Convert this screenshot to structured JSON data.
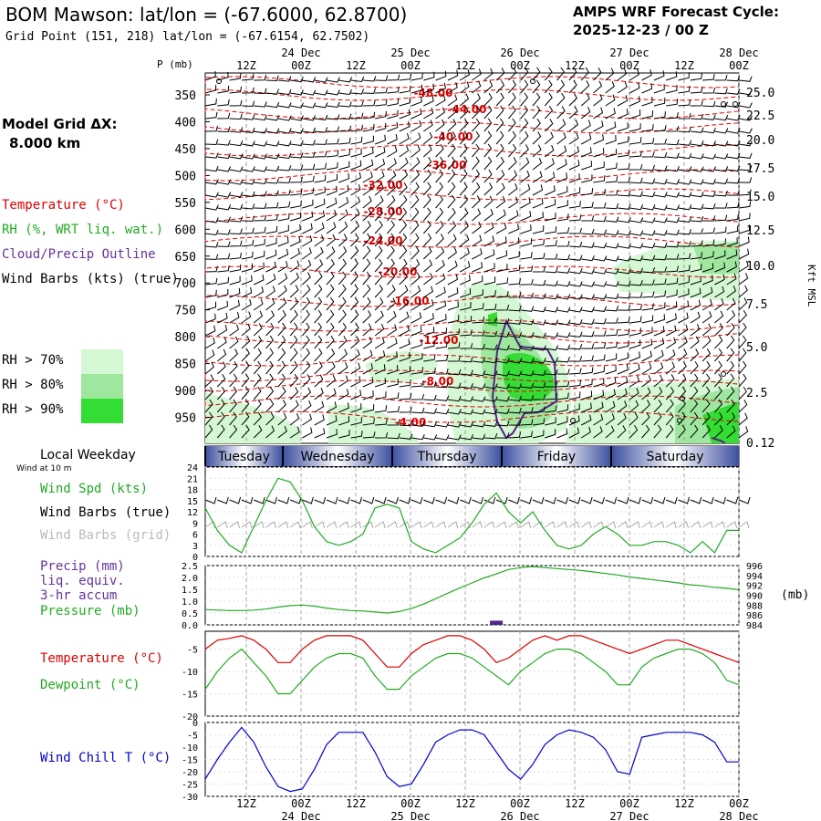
{
  "header": {
    "title": "BOM Mawson:  lat/lon = (-67.6000, 62.8700)",
    "grid_point": "Grid Point (151, 218) lat/lon = (-67.6154, 62.7502)",
    "cycle_line1": "AMPS WRF Forecast Cycle:",
    "cycle_line2": "2025-12-23 / 00  Z"
  },
  "left_legend": {
    "model_grid_line1": "Model Grid ΔX:",
    "model_grid_line2": "8.000 km",
    "temperature": "Temperature (°C)",
    "rh": "RH (%, WRT liq. wat.)",
    "cloud": "Cloud/Precip Outline",
    "wind_barbs": "Wind Barbs (kts) (true)",
    "rh70": "RH > 70%",
    "rh80": "RH > 80%",
    "rh90": "RH > 90%",
    "local_weekday": "Local Weekday",
    "wind_at": "Wind at 10 m",
    "wind_spd": "Wind Spd (kts)",
    "barbs_true": "Wind Barbs (true)",
    "barbs_grid": "Wind Barbs (grid)",
    "precip1": "Precip (mm)",
    "precip2": "liq. equiv.",
    "precip3": "3-hr accum",
    "pressure": "Pressure (mb)",
    "temperature2": "Temperature (°C)",
    "dewpoint": "Dewpoint (°C)",
    "windchill": "Wind Chill T (°C)"
  },
  "colors": {
    "temp": "#dd0000",
    "rh": "#22aa22",
    "cloud": "#552288",
    "wind": "#000000",
    "grid_barbs": "#aaaaaa",
    "rh70": "#d4f7d4",
    "rh80": "#9fe69f",
    "rh90": "#33dd33",
    "windchill": "#0000cc",
    "weekday_band": "#3d4fa0"
  },
  "chart_data": [
    {
      "type": "line",
      "panel": "time-height cross section",
      "x_tick_top": [
        "12Z",
        "00Z",
        "12Z",
        "00Z",
        "12Z",
        "00Z",
        "12Z",
        "00Z",
        "12Z",
        "00Z"
      ],
      "x_dates_top": [
        "24 Dec",
        "25 Dec",
        "26 Dec",
        "27 Dec",
        "28 Dec"
      ],
      "yaxis_left_title": "P (mb)",
      "yaxis_left": [
        350,
        400,
        450,
        500,
        550,
        600,
        650,
        700,
        750,
        800,
        850,
        900,
        950
      ],
      "yaxis_right_title": "Kft MSL",
      "yaxis_right": [
        "25.0",
        "22.5",
        "20.0",
        "17.5",
        "15.0",
        "12.5",
        "10.0",
        "7.5",
        "5.0",
        "2.5",
        "0.12"
      ],
      "temperature_contour_labels": [
        "-48.00",
        "-44.00",
        "-40.00",
        "-36.00",
        "-32.00",
        "-28.00",
        "-24.00",
        "-20.00",
        "-16.00",
        "-12.00",
        "-8.00",
        "-4.00"
      ]
    },
    {
      "type": "line",
      "panel": "weekday band",
      "days": [
        "Tuesday",
        "Wednesday",
        "Thursday",
        "Friday",
        "Saturday"
      ]
    },
    {
      "type": "line",
      "panel": "wind speed",
      "ylabel": "Wind Spd (kts)",
      "yticks": [
        0,
        3,
        6,
        9,
        12,
        15,
        18,
        21,
        24
      ],
      "ylim": [
        0,
        24
      ],
      "values": [
        13,
        7,
        3,
        1,
        8,
        15,
        21,
        20,
        15,
        8,
        4,
        3,
        4,
        6,
        13,
        14,
        13,
        4,
        2,
        1,
        3,
        5,
        9,
        14,
        17,
        12,
        9,
        12,
        7,
        3,
        2,
        3,
        6,
        8,
        6,
        3,
        3,
        4,
        4,
        3,
        1,
        4,
        1,
        7,
        7
      ]
    },
    {
      "type": "line",
      "panel": "precip and pressure",
      "ylabel_right": "(mb)",
      "yticks_left": [
        "0.0",
        "0.5",
        "1.0",
        "1.5",
        "2.0",
        "2.5"
      ],
      "yticks_right": [
        "984",
        "986",
        "988",
        "990",
        "992",
        "994",
        "996"
      ],
      "ylim_left": [
        0,
        2.5
      ],
      "ylim_right": [
        984,
        996
      ],
      "pressure": [
        987.1,
        987.0,
        986.9,
        986.9,
        987.0,
        987.2,
        987.6,
        987.9,
        988.0,
        987.8,
        987.4,
        987.1,
        986.9,
        986.8,
        986.6,
        986.4,
        986.7,
        987.3,
        988.2,
        989.3,
        990.4,
        991.5,
        992.5,
        993.5,
        994.3,
        995.2,
        995.6,
        995.8,
        995.6,
        995.4,
        995.2,
        995.0,
        994.7,
        994.4,
        994.1,
        993.7,
        993.4,
        993.1,
        992.8,
        992.5,
        992.1,
        991.9,
        991.6,
        991.4,
        991.1
      ],
      "precip": [
        0,
        0,
        0,
        0,
        0,
        0,
        0,
        0,
        0,
        0,
        0,
        0,
        0,
        0,
        0,
        0,
        0,
        0,
        0,
        0,
        0,
        0,
        0,
        0,
        0.1,
        0,
        0,
        0,
        0,
        0,
        0,
        0,
        0,
        0,
        0,
        0,
        0,
        0,
        0,
        0,
        0,
        0,
        0,
        0,
        0
      ]
    },
    {
      "type": "line",
      "panel": "temperature and dewpoint",
      "yticks": [
        -20,
        -15,
        -10,
        -5
      ],
      "ylim": [
        -20,
        -1
      ],
      "series": [
        {
          "name": "Temperature (°C)",
          "values": [
            -5,
            -3,
            -2.6,
            -2,
            -3,
            -5,
            -8,
            -8,
            -5,
            -3,
            -2,
            -2,
            -2,
            -3,
            -6,
            -9,
            -9,
            -6,
            -4,
            -3,
            -2,
            -2,
            -3,
            -5,
            -8,
            -7,
            -5,
            -3,
            -2,
            -3,
            -2,
            -2,
            -3,
            -4,
            -5,
            -6,
            -5,
            -4,
            -3,
            -3,
            -4,
            -5,
            -6,
            -7,
            -8
          ]
        },
        {
          "name": "Dewpoint (°C)",
          "values": [
            -14,
            -10,
            -7,
            -5,
            -8,
            -11,
            -15,
            -15,
            -12,
            -9,
            -7,
            -6,
            -6,
            -7,
            -11,
            -14,
            -14,
            -11,
            -9,
            -7,
            -6,
            -6,
            -7,
            -9,
            -11,
            -13,
            -10,
            -8,
            -6,
            -5,
            -5,
            -6,
            -8,
            -10,
            -13,
            -13,
            -9,
            -7,
            -6,
            -5,
            -5,
            -6,
            -8,
            -12,
            -13
          ]
        }
      ]
    },
    {
      "type": "line",
      "panel": "wind chill",
      "yticks": [
        -30,
        -25,
        -20,
        -15,
        -10,
        -5,
        0
      ],
      "ylim": [
        -30,
        0
      ],
      "values": [
        -23,
        -15,
        -8,
        -2,
        -8,
        -18,
        -26,
        -28,
        -27,
        -19,
        -9,
        -4,
        -4,
        -4,
        -12,
        -22,
        -26,
        -25,
        -17,
        -8,
        -5,
        -3,
        -3,
        -5,
        -12,
        -19,
        -23,
        -17,
        -9,
        -5,
        -3,
        -4,
        -6,
        -11,
        -20,
        -21,
        -6,
        -5,
        -4,
        -4,
        -4,
        -5,
        -8,
        -16,
        -16
      ]
    }
  ]
}
